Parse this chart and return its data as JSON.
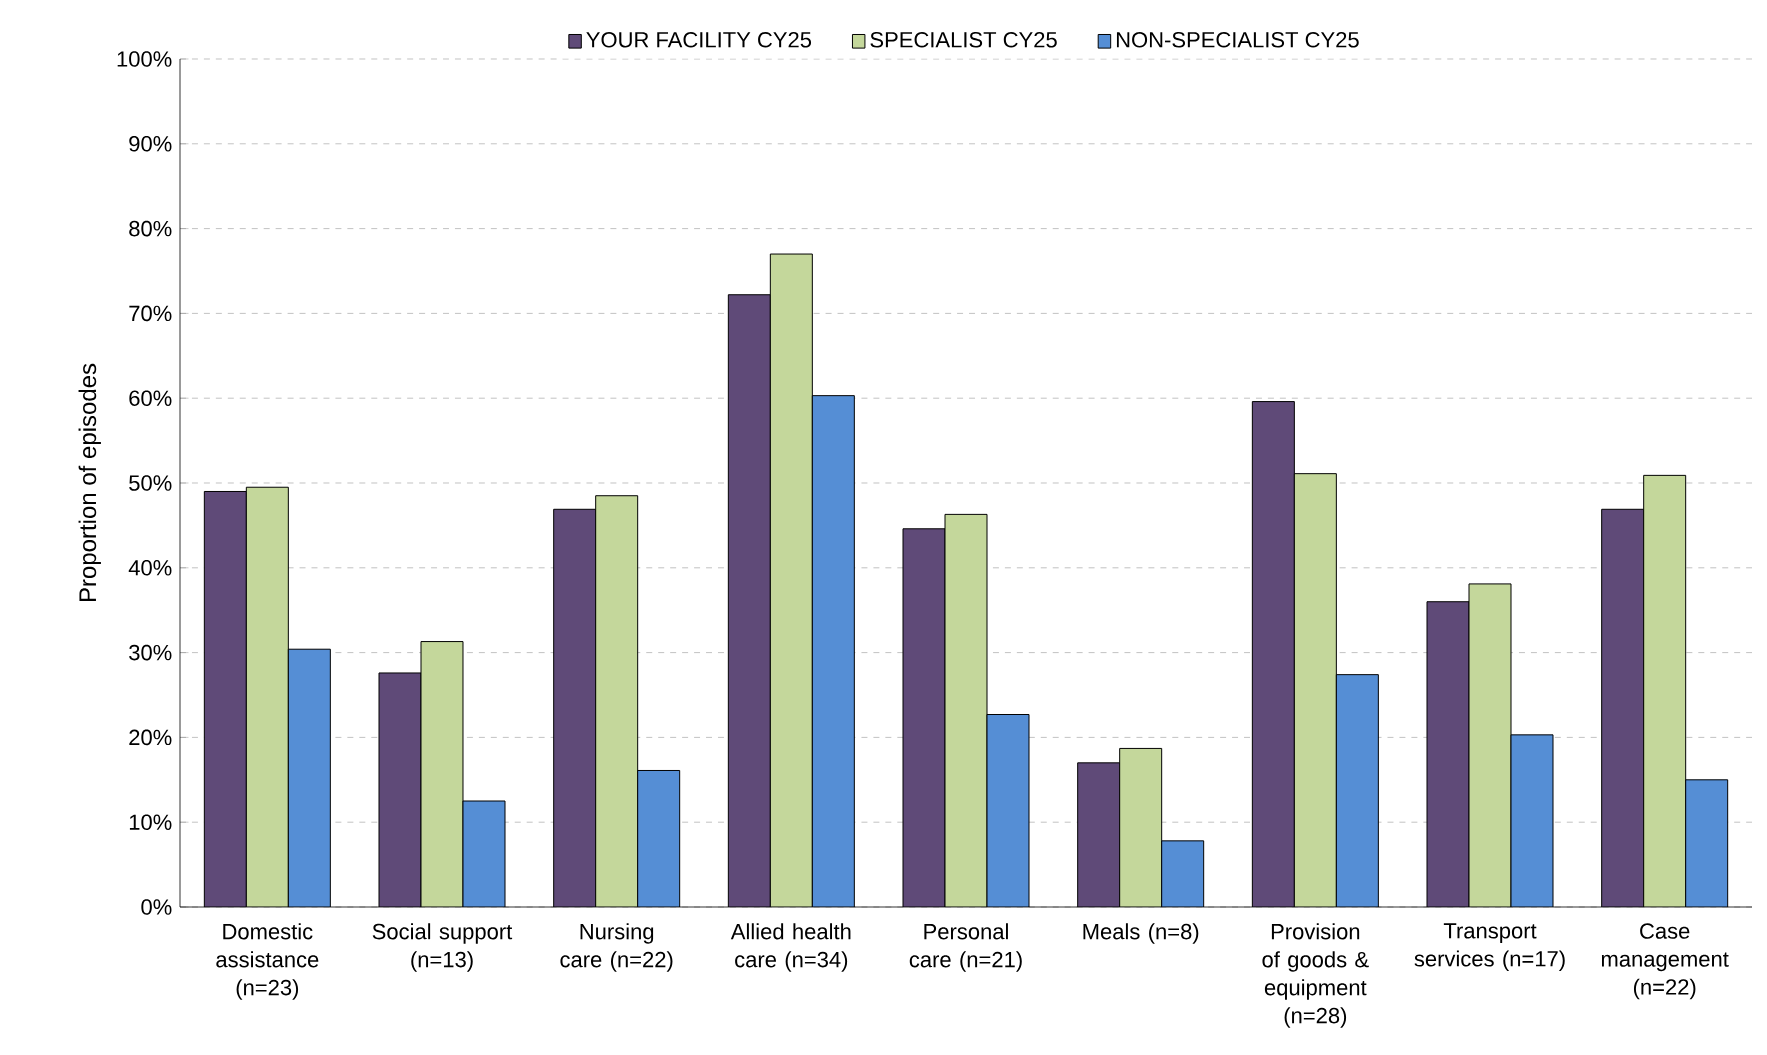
{
  "chart_data": {
    "type": "bar",
    "ylabel": "Proportion of episodes",
    "categories": [
      "Domestic assistance (n=23)",
      "Social support (n=13)",
      "Nursing care (n=22)",
      "Allied health care (n=34)",
      "Personal care (n=21)",
      "Meals (n=8)",
      "Provision of goods & equipment (n=28)",
      "Transport services (n=17)",
      "Case management (n=22)"
    ],
    "series": [
      {
        "name": "YOUR FACILITY CY25",
        "color": "#5f4a78",
        "values": [
          49.0,
          27.6,
          46.9,
          72.2,
          44.6,
          17.0,
          59.6,
          36.0,
          46.9
        ]
      },
      {
        "name": "SPECIALIST CY25",
        "color": "#c4d79b",
        "values": [
          49.5,
          31.3,
          48.5,
          77.0,
          46.3,
          18.7,
          51.1,
          38.1,
          50.9
        ]
      },
      {
        "name": "NON-SPECIALIST CY25",
        "color": "#558ed5",
        "values": [
          30.4,
          12.5,
          16.1,
          60.3,
          22.7,
          7.8,
          27.4,
          20.3,
          15.0
        ]
      }
    ],
    "ylim": [
      0,
      100
    ],
    "yticks": [
      {
        "value": 0,
        "label": "0%"
      },
      {
        "value": 10,
        "label": "10%"
      },
      {
        "value": 20,
        "label": "20%"
      },
      {
        "value": 30,
        "label": "30%"
      },
      {
        "value": 40,
        "label": "40%"
      },
      {
        "value": 50,
        "label": "50%"
      },
      {
        "value": 60,
        "label": "60%"
      },
      {
        "value": 70,
        "label": "70%"
      },
      {
        "value": 80,
        "label": "80%"
      },
      {
        "value": 90,
        "label": "90%"
      },
      {
        "value": 100,
        "label": "100%"
      }
    ],
    "grid": "y",
    "legend": "top"
  }
}
